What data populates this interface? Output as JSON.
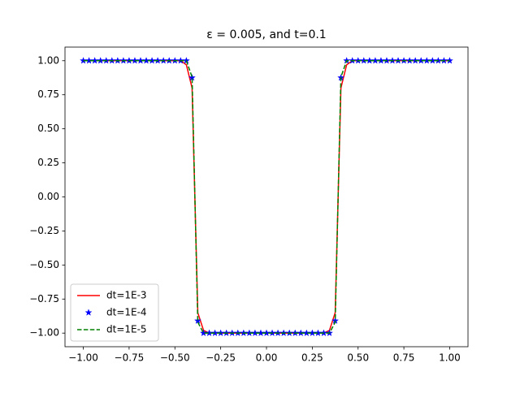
{
  "chart_data": {
    "type": "line",
    "title": "ε = 0.005, and t=0.1",
    "x": [
      -1,
      -0.96875,
      -0.9375,
      -0.90625,
      -0.875,
      -0.84375,
      -0.8125,
      -0.78125,
      -0.75,
      -0.71875,
      -0.6875,
      -0.65625,
      -0.625,
      -0.59375,
      -0.5625,
      -0.53125,
      -0.5,
      -0.46875,
      -0.4375,
      -0.40625,
      -0.375,
      -0.34375,
      -0.3125,
      -0.28125,
      -0.25,
      -0.21875,
      -0.1875,
      -0.15625,
      -0.125,
      -0.09375,
      -0.0625,
      -0.03125,
      0,
      0.03125,
      0.0625,
      0.09375,
      0.125,
      0.15625,
      0.1875,
      0.21875,
      0.25,
      0.28125,
      0.3125,
      0.34375,
      0.375,
      0.40625,
      0.4375,
      0.46875,
      0.5,
      0.53125,
      0.5625,
      0.59375,
      0.625,
      0.65625,
      0.6875,
      0.71875,
      0.75,
      0.78125,
      0.8125,
      0.84375,
      0.875,
      0.90625,
      0.9375,
      0.96875,
      1
    ],
    "series": [
      {
        "name": "dt=1E-3",
        "color": "#ff0000",
        "linestyle": "solid",
        "marker": "none",
        "values": [
          1,
          1,
          1,
          1,
          1,
          1,
          1,
          1,
          1,
          1,
          1,
          1,
          1,
          1,
          1,
          1,
          1,
          1,
          0.97,
          0.8,
          -0.85,
          -0.98,
          -1,
          -1,
          -1,
          -1,
          -1,
          -1,
          -1,
          -1,
          -1,
          -1,
          -1,
          -1,
          -1,
          -1,
          -1,
          -1,
          -1,
          -1,
          -1,
          -1,
          -1,
          -0.98,
          -0.85,
          0.8,
          0.97,
          1,
          1,
          1,
          1,
          1,
          1,
          1,
          1,
          1,
          1,
          1,
          1,
          1,
          1,
          1,
          1,
          1,
          1
        ]
      },
      {
        "name": "dt=1E-4",
        "color": "#0000ff",
        "linestyle": "none",
        "marker": "star",
        "values": [
          1,
          1,
          1,
          1,
          1,
          1,
          1,
          1,
          1,
          1,
          1,
          1,
          1,
          1,
          1,
          1,
          1,
          1,
          1,
          0.875,
          -0.91,
          -1,
          -1,
          -1,
          -1,
          -1,
          -1,
          -1,
          -1,
          -1,
          -1,
          -1,
          -1,
          -1,
          -1,
          -1,
          -1,
          -1,
          -1,
          -1,
          -1,
          -1,
          -1,
          -1,
          -0.91,
          0.875,
          1,
          1,
          1,
          1,
          1,
          1,
          1,
          1,
          1,
          1,
          1,
          1,
          1,
          1,
          1,
          1,
          1,
          1,
          1
        ]
      },
      {
        "name": "dt=1E-5",
        "color": "#008000",
        "linestyle": "dashed",
        "marker": "none",
        "values": [
          1,
          1,
          1,
          1,
          1,
          1,
          1,
          1,
          1,
          1,
          1,
          1,
          1,
          1,
          1,
          1,
          1,
          1,
          1,
          0.88,
          -0.92,
          -1,
          -1,
          -1,
          -1,
          -1,
          -1,
          -1,
          -1,
          -1,
          -1,
          -1,
          -1,
          -1,
          -1,
          -1,
          -1,
          -1,
          -1,
          -1,
          -1,
          -1,
          -1,
          -1,
          -0.92,
          0.88,
          1,
          1,
          1,
          1,
          1,
          1,
          1,
          1,
          1,
          1,
          1,
          1,
          1,
          1,
          1,
          1,
          1,
          1,
          1
        ]
      }
    ],
    "xlim": [
      -1.1,
      1.1
    ],
    "ylim": [
      -1.1,
      1.1
    ],
    "xticks": [
      {
        "value": -1,
        "label": "−1.00"
      },
      {
        "value": -0.75,
        "label": "−0.75"
      },
      {
        "value": -0.5,
        "label": "−0.50"
      },
      {
        "value": -0.25,
        "label": "−0.25"
      },
      {
        "value": 0,
        "label": "0.00"
      },
      {
        "value": 0.25,
        "label": "0.25"
      },
      {
        "value": 0.5,
        "label": "0.50"
      },
      {
        "value": 0.75,
        "label": "0.75"
      },
      {
        "value": 1,
        "label": "1.00"
      }
    ],
    "yticks": [
      {
        "value": -1,
        "label": "−1.00"
      },
      {
        "value": -0.75,
        "label": "−0.75"
      },
      {
        "value": -0.5,
        "label": "−0.50"
      },
      {
        "value": -0.25,
        "label": "−0.25"
      },
      {
        "value": 0,
        "label": "0.00"
      },
      {
        "value": 0.25,
        "label": "0.25"
      },
      {
        "value": 0.5,
        "label": "0.50"
      },
      {
        "value": 0.75,
        "label": "0.75"
      },
      {
        "value": 1,
        "label": "1.00"
      }
    ],
    "grid": false,
    "legend": "lower left"
  }
}
